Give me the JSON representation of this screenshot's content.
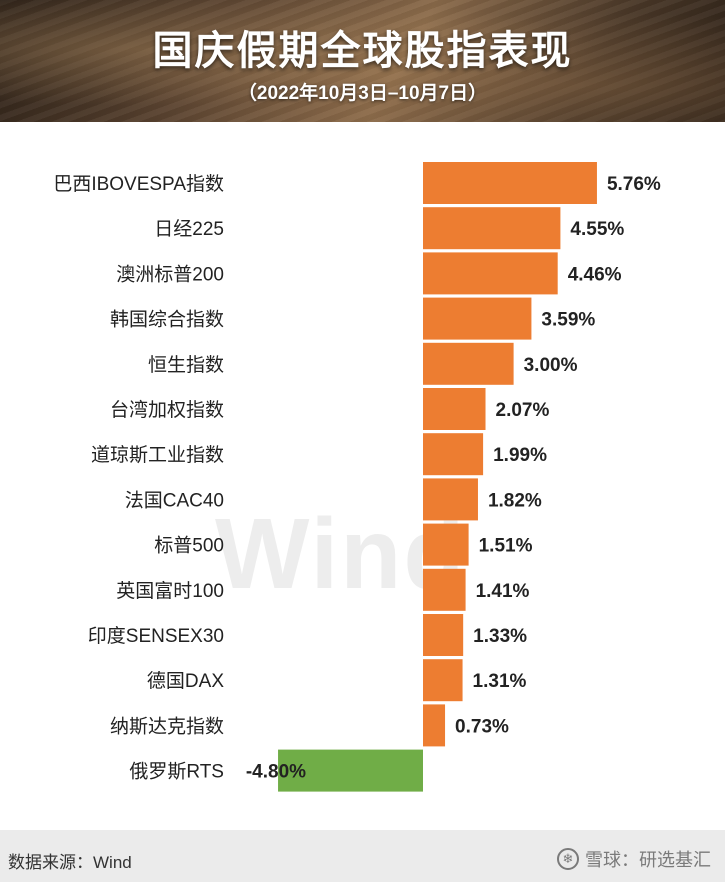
{
  "header": {
    "title": "国庆假期全球股指表现",
    "subtitle": "（2022年10月3日–10月7日）"
  },
  "watermark": "Wind",
  "footer": {
    "source": "数据来源：Wind",
    "brand": "雪球：研选基汇"
  },
  "colors": {
    "positive": "#ED7D31",
    "negative": "#70AD47",
    "label": "#222222"
  },
  "chart_data": {
    "type": "bar",
    "orientation": "horizontal",
    "title": "国庆假期全球股指表现",
    "subtitle": "（2022年10月3日–10月7日）",
    "unit": "%",
    "categories": [
      "巴西IBOVESPA指数",
      "日经225",
      "澳洲标普200",
      "韩国综合指数",
      "恒生指数",
      "台湾加权指数",
      "道琼斯工业指数",
      "法国CAC40",
      "标普500",
      "英国富时100",
      "印度SENSEX30",
      "德国DAX",
      "纳斯达克指数",
      "俄罗斯RTS"
    ],
    "values": [
      5.76,
      4.55,
      4.46,
      3.59,
      3.0,
      2.07,
      1.99,
      1.82,
      1.51,
      1.41,
      1.33,
      1.31,
      0.73,
      -4.8
    ],
    "value_labels": [
      "5.76%",
      "4.55%",
      "4.46%",
      "3.59%",
      "3.00%",
      "2.07%",
      "1.99%",
      "1.82%",
      "1.51%",
      "1.41%",
      "1.33%",
      "1.31%",
      "0.73%",
      "-4.80%"
    ],
    "xlim": [
      -4.8,
      5.76
    ],
    "grid": false,
    "legend": "none"
  }
}
